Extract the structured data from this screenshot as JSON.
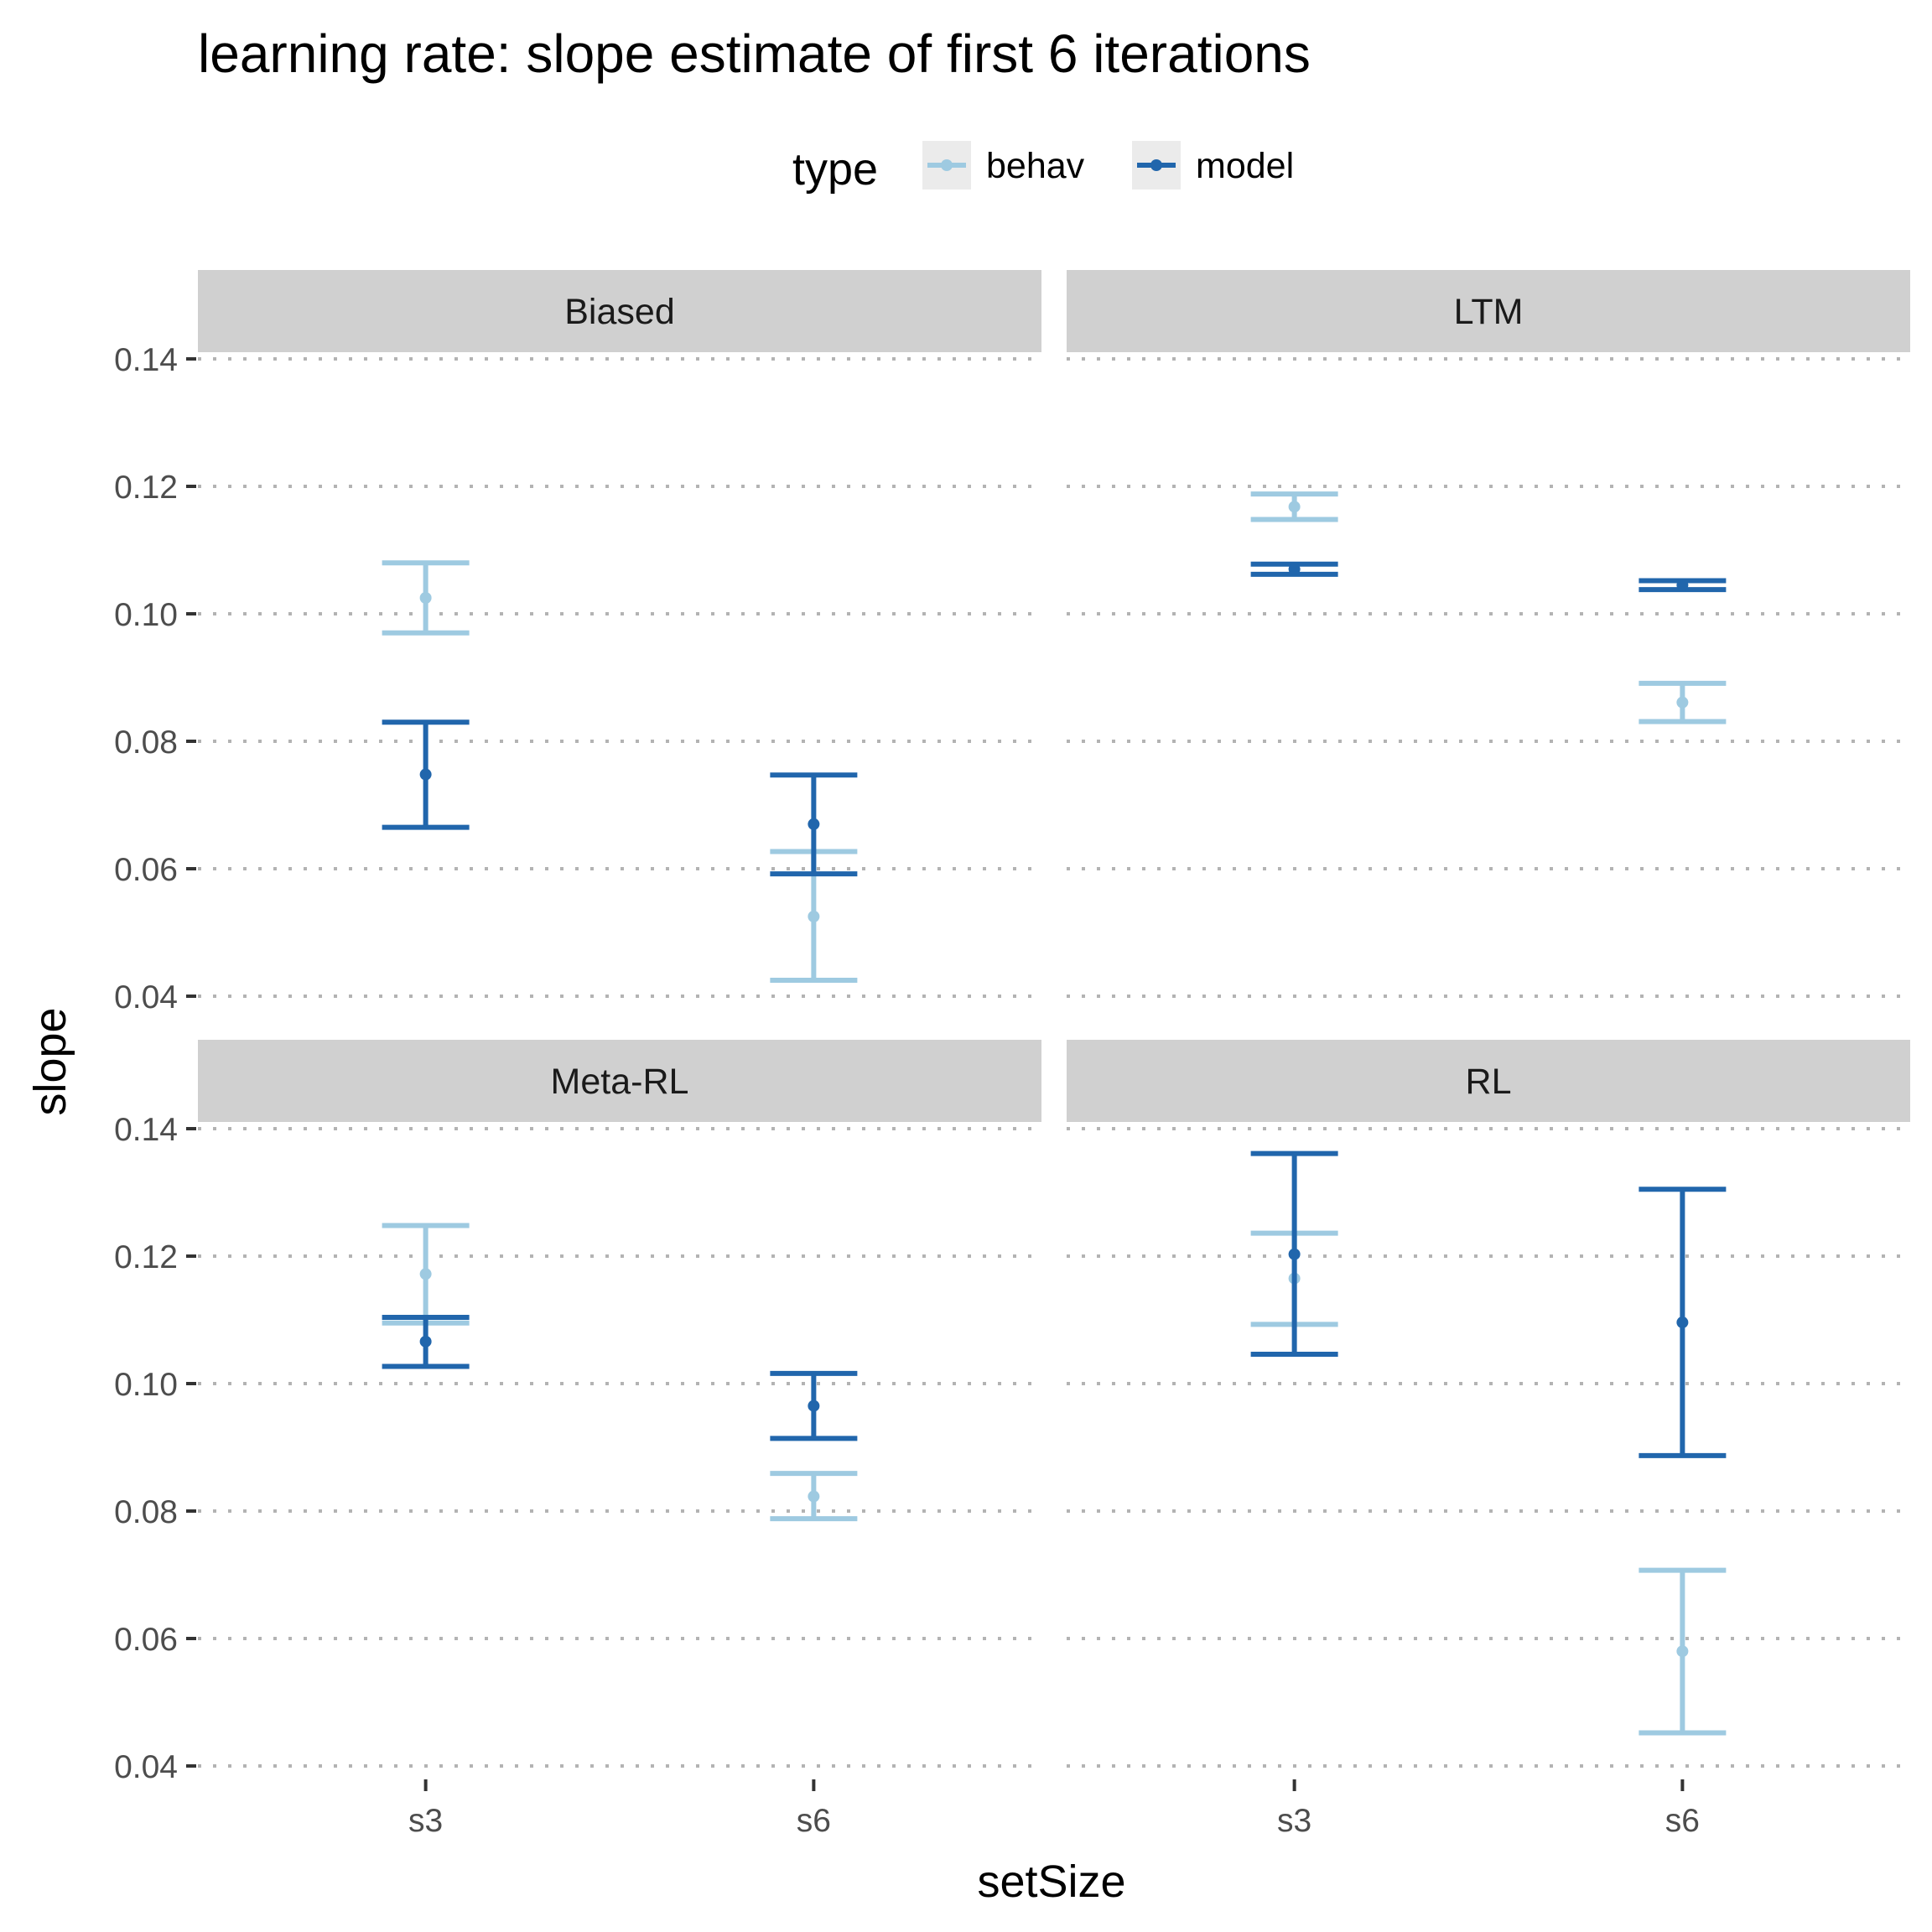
{
  "chart_data": {
    "type": "errorbar",
    "title": "learning rate: slope estimate of first 6 iterations",
    "xlabel": "setSize",
    "ylabel": "slope",
    "legend": {
      "title": "type",
      "position": "top",
      "entries": [
        {
          "name": "behav",
          "color": "#9ecae1"
        },
        {
          "name": "model",
          "color": "#2166ac"
        }
      ]
    },
    "categories": [
      "s3",
      "s6"
    ],
    "ylim": [
      0.04,
      0.14
    ],
    "yticks": [
      0.04,
      0.06,
      0.08,
      0.1,
      0.12,
      0.14
    ],
    "ytick_labels": [
      "0.04",
      "0.06",
      "0.08",
      "0.10",
      "0.12",
      "0.14"
    ],
    "grid": "horizontal dotted",
    "panels": [
      {
        "name": "Biased",
        "series": [
          {
            "name": "behav",
            "points": [
              {
                "x": "s3",
                "y": 0.1025,
                "ymin": 0.097,
                "ymax": 0.108
              },
              {
                "x": "s6",
                "y": 0.0525,
                "ymin": 0.0425,
                "ymax": 0.0627
              }
            ]
          },
          {
            "name": "model",
            "points": [
              {
                "x": "s3",
                "y": 0.0748,
                "ymin": 0.0665,
                "ymax": 0.083
              },
              {
                "x": "s6",
                "y": 0.067,
                "ymin": 0.0592,
                "ymax": 0.0747
              }
            ]
          }
        ]
      },
      {
        "name": "LTM",
        "series": [
          {
            "name": "behav",
            "points": [
              {
                "x": "s3",
                "y": 0.1168,
                "ymin": 0.1148,
                "ymax": 0.1188
              },
              {
                "x": "s6",
                "y": 0.0861,
                "ymin": 0.0831,
                "ymax": 0.0891
              }
            ]
          },
          {
            "name": "model",
            "points": [
              {
                "x": "s3",
                "y": 0.107,
                "ymin": 0.1062,
                "ymax": 0.1078
              },
              {
                "x": "s6",
                "y": 0.1045,
                "ymin": 0.1038,
                "ymax": 0.1052
              }
            ]
          }
        ]
      },
      {
        "name": "Meta-RL",
        "series": [
          {
            "name": "behav",
            "points": [
              {
                "x": "s3",
                "y": 0.1172,
                "ymin": 0.1095,
                "ymax": 0.1248
              },
              {
                "x": "s6",
                "y": 0.0823,
                "ymin": 0.0788,
                "ymax": 0.0859
              }
            ]
          },
          {
            "name": "model",
            "points": [
              {
                "x": "s3",
                "y": 0.1066,
                "ymin": 0.1027,
                "ymax": 0.1104
              },
              {
                "x": "s6",
                "y": 0.0965,
                "ymin": 0.0914,
                "ymax": 0.1016
              }
            ]
          }
        ]
      },
      {
        "name": "RL",
        "series": [
          {
            "name": "behav",
            "points": [
              {
                "x": "s3",
                "y": 0.1165,
                "ymin": 0.1093,
                "ymax": 0.1236
              },
              {
                "x": "s6",
                "y": 0.058,
                "ymin": 0.0452,
                "ymax": 0.0707
              }
            ]
          },
          {
            "name": "model",
            "points": [
              {
                "x": "s3",
                "y": 0.1203,
                "ymin": 0.1046,
                "ymax": 0.1361
              },
              {
                "x": "s6",
                "y": 0.1096,
                "ymin": 0.0887,
                "ymax": 0.1305
              }
            ]
          }
        ]
      }
    ]
  }
}
